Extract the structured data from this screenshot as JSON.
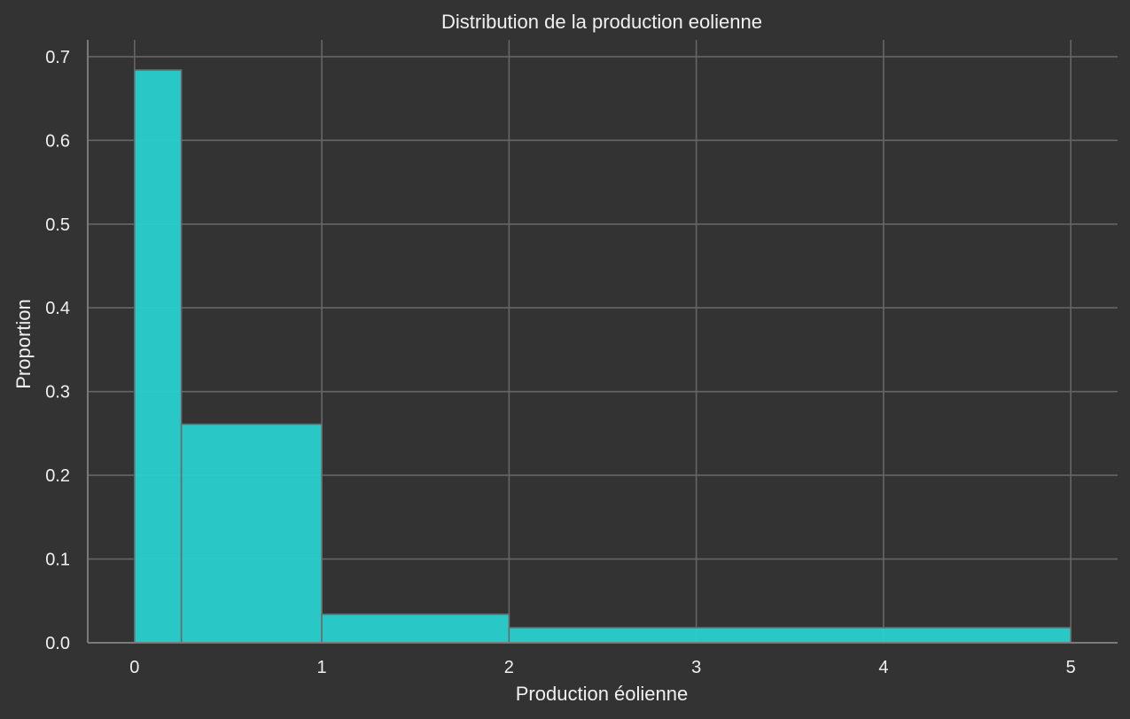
{
  "chart_data": {
    "type": "bar",
    "title": "Distribution de la production eolienne",
    "xlabel": "Production éolienne",
    "ylabel": "Proportion",
    "bins": [
      {
        "x0": 0,
        "x1": 0.25,
        "value": 0.684
      },
      {
        "x0": 0.25,
        "x1": 1,
        "value": 0.261
      },
      {
        "x0": 1,
        "x1": 2,
        "value": 0.034
      },
      {
        "x0": 2,
        "x1": 5,
        "value": 0.018
      }
    ],
    "xlim": [
      -0.25,
      5.25
    ],
    "ylim": [
      0,
      0.72
    ],
    "xticks": [
      0,
      1,
      2,
      3,
      4,
      5
    ],
    "xtick_labels": [
      "0",
      "1",
      "2",
      "3",
      "4",
      "5"
    ],
    "yticks": [
      0.0,
      0.1,
      0.2,
      0.3,
      0.4,
      0.5,
      0.6,
      0.7
    ],
    "ytick_labels": [
      "0.0",
      "0.1",
      "0.2",
      "0.3",
      "0.4",
      "0.5",
      "0.6",
      "0.7"
    ],
    "grid": true
  },
  "colors": {
    "background": "#333333",
    "bar_fill": "#2ad0d0",
    "bar_edge": "#6b6b6b",
    "grid": "#666666",
    "axis": "#7a7a7a",
    "text": "#f0f0f0"
  }
}
